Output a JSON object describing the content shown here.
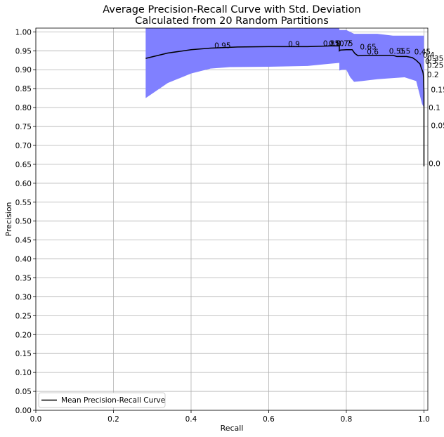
{
  "chart_data": {
    "type": "line",
    "title": "Average Precision-Recall Curve with Std. Deviation",
    "subtitle": "Calculated from 20 Random Partitions",
    "xlabel": "Recall",
    "ylabel": "Precision",
    "xlim": [
      0,
      1.01
    ],
    "ylim": [
      0,
      1.01
    ],
    "x_ticks": [
      0.0,
      0.2,
      0.4,
      0.6,
      0.8,
      1.0
    ],
    "x_tick_labels": [
      "0.0",
      "0.2",
      "0.4",
      "0.6",
      "0.8",
      "1.0"
    ],
    "y_ticks": [
      0.0,
      0.05,
      0.1,
      0.15,
      0.2,
      0.25,
      0.3,
      0.35,
      0.4,
      0.45,
      0.5,
      0.55,
      0.6,
      0.65,
      0.7,
      0.75,
      0.8,
      0.85,
      0.9,
      0.95,
      1.0
    ],
    "y_tick_labels": [
      "0.00",
      "0.05",
      "0.10",
      "0.15",
      "0.20",
      "0.25",
      "0.30",
      "0.35",
      "0.40",
      "0.45",
      "0.50",
      "0.55",
      "0.60",
      "0.65",
      "0.70",
      "0.75",
      "0.80",
      "0.85",
      "0.90",
      "0.95",
      "1.00"
    ],
    "grid": true,
    "legend": {
      "position": "lower-left",
      "entries": [
        "Mean Precision-Recall Curve"
      ]
    },
    "colors": {
      "mean_line": "#000000",
      "std_band": "#8080ff",
      "grid": "#b0b0b0"
    },
    "series": [
      {
        "name": "Mean Precision-Recall Curve",
        "x": [
          0.283,
          0.34,
          0.4,
          0.45,
          0.52,
          0.6,
          0.7,
          0.76,
          0.782,
          0.782,
          0.785,
          0.8,
          0.815,
          0.822,
          0.83,
          0.85,
          0.88,
          0.9,
          0.92,
          0.93,
          0.94,
          0.955,
          0.97,
          0.98,
          0.99,
          0.993,
          0.995,
          0.997,
          0.998,
          0.999,
          1.0,
          1.0
        ],
        "y": [
          0.93,
          0.944,
          0.953,
          0.957,
          0.96,
          0.961,
          0.961,
          0.963,
          0.963,
          0.95,
          0.952,
          0.953,
          0.953,
          0.943,
          0.937,
          0.938,
          0.938,
          0.938,
          0.938,
          0.935,
          0.935,
          0.935,
          0.932,
          0.925,
          0.915,
          0.905,
          0.9,
          0.895,
          0.89,
          0.88,
          0.84,
          0.645
        ]
      }
    ],
    "std_band": {
      "x": [
        0.283,
        0.34,
        0.4,
        0.45,
        0.5,
        0.6,
        0.7,
        0.75,
        0.782,
        0.782,
        0.79,
        0.8,
        0.81,
        0.82,
        0.84,
        0.88,
        0.92,
        0.95,
        0.98,
        0.995,
        1.0
      ],
      "upper": [
        1.01,
        1.01,
        1.01,
        1.01,
        1.01,
        1.01,
        1.01,
        1.01,
        1.01,
        1.005,
        1.005,
        1.005,
        1.0,
        0.995,
        0.995,
        0.995,
        0.99,
        0.99,
        0.99,
        0.99,
        0.99
      ],
      "lower": [
        0.825,
        0.865,
        0.89,
        0.903,
        0.907,
        0.908,
        0.91,
        0.915,
        0.918,
        0.898,
        0.9,
        0.9,
        0.88,
        0.868,
        0.87,
        0.875,
        0.878,
        0.88,
        0.87,
        0.81,
        0.8
      ]
    },
    "annotations": [
      {
        "text": "0.95",
        "x": 0.46,
        "y": 0.957
      },
      {
        "text": "0.9",
        "x": 0.65,
        "y": 0.961
      },
      {
        "text": "0.85",
        "x": 0.74,
        "y": 0.963
      },
      {
        "text": "0.8",
        "x": 0.755,
        "y": 0.963
      },
      {
        "text": "0.75",
        "x": 0.775,
        "y": 0.963
      },
      {
        "text": "0.7",
        "x": 0.782,
        "y": 0.963
      },
      {
        "text": "0.65",
        "x": 0.835,
        "y": 0.953
      },
      {
        "text": "0.6",
        "x": 0.853,
        "y": 0.94
      },
      {
        "text": "0.55",
        "x": 0.91,
        "y": 0.942
      },
      {
        "text": "0.5",
        "x": 0.935,
        "y": 0.942
      },
      {
        "text": "0.45",
        "x": 0.975,
        "y": 0.94
      },
      {
        "text": "0.4",
        "x": 0.997,
        "y": 0.932
      },
      {
        "text": "0.35",
        "x": 1.008,
        "y": 0.923
      },
      {
        "text": "0.3",
        "x": 1.003,
        "y": 0.915
      },
      {
        "text": "0.25",
        "x": 1.008,
        "y": 0.905
      },
      {
        "text": "0.2",
        "x": 1.008,
        "y": 0.88
      },
      {
        "text": "0.15",
        "x": 1.018,
        "y": 0.84
      },
      {
        "text": "0.1",
        "x": 1.012,
        "y": 0.793
      },
      {
        "text": "0.05",
        "x": 1.018,
        "y": 0.745
      },
      {
        "text": "0.0",
        "x": 1.012,
        "y": 0.645
      }
    ]
  }
}
